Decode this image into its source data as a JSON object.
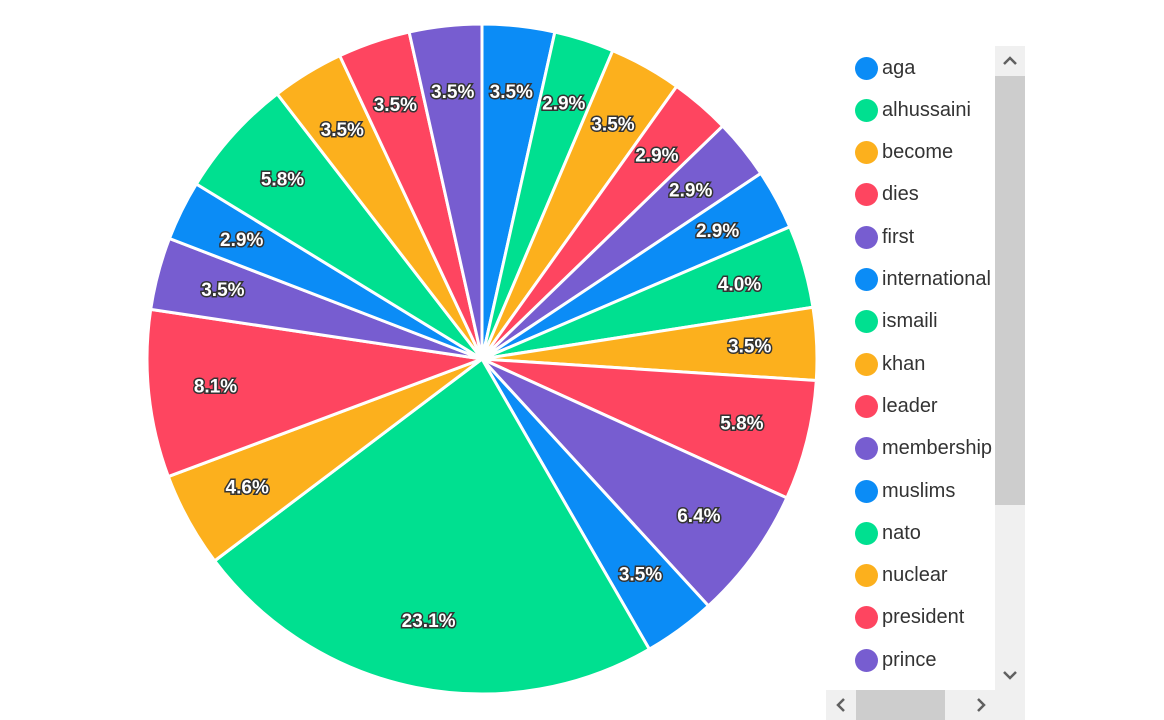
{
  "chart_data": {
    "type": "pie",
    "title": "",
    "start_category": "aga",
    "slices": [
      {
        "label": "aga",
        "value": 3.5,
        "color": "#0b8cf6"
      },
      {
        "label": "alhussaini",
        "value": 2.9,
        "color": "#00e090"
      },
      {
        "label": "become",
        "value": 3.5,
        "color": "#fcb01d"
      },
      {
        "label": "dies",
        "value": 2.9,
        "color": "#fe4560"
      },
      {
        "label": "first",
        "value": 2.9,
        "color": "#775dd0"
      },
      {
        "label": "international",
        "value": 2.9,
        "color": "#0b8cf6"
      },
      {
        "label": "ismaili",
        "value": 4.0,
        "color": "#00e090"
      },
      {
        "label": "khan",
        "value": 3.5,
        "color": "#fcb01d"
      },
      {
        "label": "leader",
        "value": 5.8,
        "color": "#fe4560"
      },
      {
        "label": "membership",
        "value": 6.4,
        "color": "#775dd0"
      },
      {
        "label": "muslims",
        "value": 3.5,
        "color": "#0b8cf6"
      },
      {
        "label": "nato",
        "value": 23.1,
        "color": "#00e090"
      },
      {
        "label": "nuclear",
        "value": 4.6,
        "color": "#fcb01d"
      },
      {
        "label": "president",
        "value": 8.1,
        "color": "#fe4560"
      },
      {
        "label": "prince",
        "value": 3.5,
        "color": "#775dd0"
      },
      {
        "label": "",
        "value": 2.9,
        "color": "#0b8cf6"
      },
      {
        "label": "",
        "value": 5.8,
        "color": "#00e090"
      },
      {
        "label": "",
        "value": 3.5,
        "color": "#fcb01d"
      },
      {
        "label": "",
        "value": 3.5,
        "color": "#fe4560"
      },
      {
        "label": "",
        "value": 3.5,
        "color": "#775dd0"
      }
    ],
    "value_suffix": "%",
    "legend_position": "right",
    "legend_scrollable": true
  },
  "legend": {
    "visible_items": [
      "aga",
      "alhussaini",
      "become",
      "dies",
      "first",
      "international",
      "ismaili",
      "khan",
      "leader",
      "membership",
      "muslims",
      "nato",
      "nuclear",
      "president",
      "prince"
    ],
    "scroll_up_icon": "chevron-up-icon",
    "scroll_down_icon": "chevron-down-icon",
    "scroll_left_icon": "chevron-left-icon",
    "scroll_right_icon": "chevron-right-icon"
  }
}
